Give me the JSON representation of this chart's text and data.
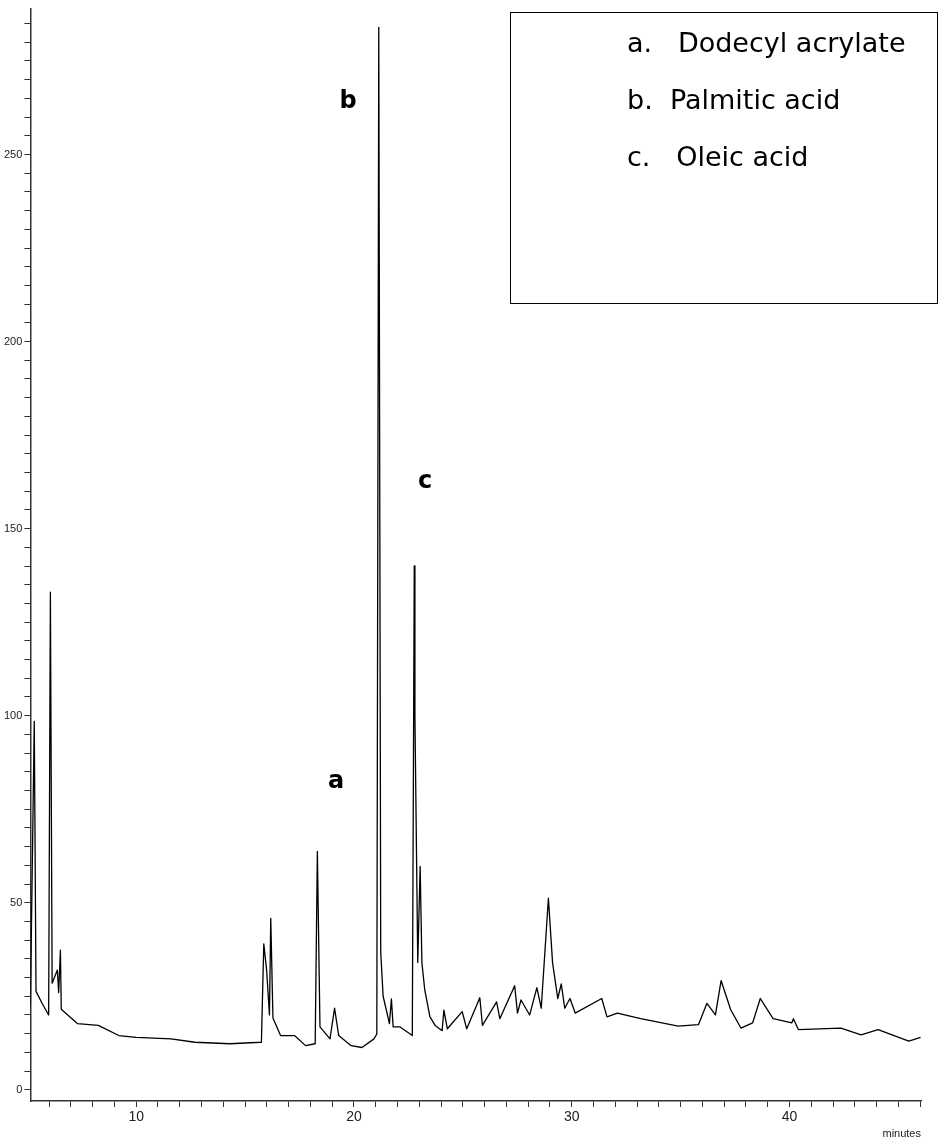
{
  "chart_data": {
    "type": "line",
    "xlabel": "minutes",
    "annotations": [
      "a",
      "b",
      "c",
      "a.   Dodecyl acrylate",
      "b.  Palmitic acid",
      "c.   Oleic acid"
    ],
    "series": [
      {
        "color": "#000000",
        "x": [
          5.14,
          5.32,
          5.4,
          5.69,
          5.98,
          6.06,
          6.14,
          6.38,
          6.44,
          6.52,
          6.56,
          7.3,
          8.26,
          9.2,
          10,
          11.6,
          12.7,
          14.3,
          15.75,
          15.86,
          15.99,
          16.12,
          16.18,
          16.28,
          16.63,
          17.27,
          17.78,
          18.22,
          18.32,
          18.44,
          18.9,
          19.11,
          19.3,
          19.87,
          20.37,
          20.92,
          21.05,
          21.14,
          21.23,
          21.34,
          21.63,
          21.72,
          21.8,
          22.12,
          22.68,
          22.77,
          22.8,
          22.93,
          23.04,
          23.12,
          23.25,
          23.49,
          23.73,
          24.05,
          24.13,
          24.29,
          24.97,
          25.18,
          25.78,
          25.9,
          26.55,
          26.7,
          27.38,
          27.51,
          27.67,
          28.07,
          28.4,
          28.6,
          28.93,
          29.12,
          29.36,
          29.52,
          29.68,
          29.92,
          30.16,
          31.38,
          31.62,
          32.1,
          33.17,
          34.89,
          35.82,
          36.21,
          36.6,
          36.86,
          37.3,
          37.77,
          38.31,
          38.66,
          39.25,
          40.11,
          40.18,
          40.41,
          42.36,
          43.29,
          44.07,
          45.48,
          46.02
        ],
        "values": [
          22.2,
          98.5,
          26.3,
          23,
          20,
          133,
          28.5,
          32,
          26,
          37.3,
          21.5,
          17.7,
          17.2,
          14.5,
          14,
          13.6,
          12.7,
          12.3,
          12.7,
          39,
          32,
          20,
          45.8,
          19.2,
          14.5,
          14.5,
          11.8,
          12.3,
          63.7,
          16.8,
          13.6,
          21.8,
          14.5,
          11.8,
          11.3,
          13.6,
          14.9,
          284,
          36.7,
          25,
          17.7,
          24.3,
          16.8,
          16.8,
          14.5,
          140,
          100,
          34,
          59.7,
          34,
          26.8,
          19.5,
          17.2,
          15.8,
          21.3,
          16.3,
          20.9,
          16.3,
          24.6,
          17.2,
          23.5,
          19,
          27.8,
          20.5,
          24,
          20,
          27.3,
          21.8,
          51.2,
          34,
          24.4,
          28.3,
          21.8,
          24.4,
          20.5,
          24.4,
          19.5,
          20.5,
          19,
          17,
          17.4,
          23.1,
          20,
          29.2,
          21.4,
          16.5,
          17.9,
          24.4,
          19,
          17.9,
          19,
          16.1,
          16.5,
          14.7,
          16.1,
          13,
          14
        ]
      }
    ],
    "xlim": [
      5.14,
      46.04
    ],
    "xticks": [
      {
        "value": 6,
        "label": null
      },
      {
        "value": 7,
        "label": null
      },
      {
        "value": 8,
        "label": null
      },
      {
        "value": 9,
        "label": null
      },
      10,
      {
        "value": 11,
        "label": null
      },
      {
        "value": 12,
        "label": null
      },
      {
        "value": 13,
        "label": null
      },
      {
        "value": 14,
        "label": null
      },
      {
        "value": 15,
        "label": null
      },
      {
        "value": 16,
        "label": null
      },
      {
        "value": 17,
        "label": null
      },
      {
        "value": 18,
        "label": null
      },
      {
        "value": 19,
        "label": null
      },
      20,
      {
        "value": 21,
        "label": null
      },
      {
        "value": 22,
        "label": null
      },
      {
        "value": 23,
        "label": null
      },
      {
        "value": 24,
        "label": null
      },
      {
        "value": 25,
        "label": null
      },
      {
        "value": 26,
        "label": null
      },
      {
        "value": 27,
        "label": null
      },
      {
        "value": 28,
        "label": null
      },
      {
        "value": 29,
        "label": null
      },
      30,
      {
        "value": 31,
        "label": null
      },
      {
        "value": 32,
        "label": null
      },
      {
        "value": 33,
        "label": null
      },
      {
        "value": 34,
        "label": null
      },
      {
        "value": 35,
        "label": null
      },
      {
        "value": 36,
        "label": null
      },
      {
        "value": 37,
        "label": null
      },
      {
        "value": 38,
        "label": null
      },
      {
        "value": 39,
        "label": null
      },
      40,
      {
        "value": 41,
        "label": null
      },
      {
        "value": 42,
        "label": null
      },
      {
        "value": 43,
        "label": null
      },
      {
        "value": 44,
        "label": null
      },
      {
        "value": 45,
        "label": null
      },
      {
        "value": 46,
        "label": null
      }
    ],
    "ylim": [
      -3,
      289
    ],
    "yticks": [
      0,
      {
        "value": 5,
        "label": null
      },
      {
        "value": 10,
        "label": null
      },
      {
        "value": 15,
        "label": null
      },
      {
        "value": 20,
        "label": null
      },
      {
        "value": 25,
        "label": null
      },
      {
        "value": 30,
        "label": null
      },
      {
        "value": 35,
        "label": null
      },
      {
        "value": 40,
        "label": null
      },
      {
        "value": 45,
        "label": null
      },
      50,
      {
        "value": 55,
        "label": null
      },
      {
        "value": 60,
        "label": null
      },
      {
        "value": 65,
        "label": null
      },
      {
        "value": 70,
        "label": null
      },
      {
        "value": 75,
        "label": null
      },
      {
        "value": 80,
        "label": null
      },
      {
        "value": 85,
        "label": null
      },
      {
        "value": 90,
        "label": null
      },
      {
        "value": 95,
        "label": null
      },
      100,
      {
        "value": 105,
        "label": null
      },
      {
        "value": 110,
        "label": null
      },
      {
        "value": 115,
        "label": null
      },
      {
        "value": 120,
        "label": null
      },
      {
        "value": 125,
        "label": null
      },
      {
        "value": 130,
        "label": null
      },
      {
        "value": 135,
        "label": null
      },
      {
        "value": 140,
        "label": null
      },
      {
        "value": 145,
        "label": null
      },
      150,
      {
        "value": 155,
        "label": null
      },
      {
        "value": 160,
        "label": null
      },
      {
        "value": 165,
        "label": null
      },
      {
        "value": 170,
        "label": null
      },
      {
        "value": 175,
        "label": null
      },
      {
        "value": 180,
        "label": null
      },
      {
        "value": 185,
        "label": null
      },
      {
        "value": 190,
        "label": null
      },
      {
        "value": 195,
        "label": null
      },
      200,
      {
        "value": 205,
        "label": null
      },
      {
        "value": 210,
        "label": null
      },
      {
        "value": 215,
        "label": null
      },
      {
        "value": 220,
        "label": null
      },
      {
        "value": 225,
        "label": null
      },
      {
        "value": 230,
        "label": null
      },
      {
        "value": 235,
        "label": null
      },
      {
        "value": 240,
        "label": null
      },
      {
        "value": 245,
        "label": null
      },
      250,
      {
        "value": 255,
        "label": null
      },
      {
        "value": 260,
        "label": null
      },
      {
        "value": 265,
        "label": null
      },
      {
        "value": 270,
        "label": null
      },
      {
        "value": 275,
        "label": null
      },
      {
        "value": 280,
        "label": null
      },
      {
        "value": 285,
        "label": null
      }
    ],
    "grid": false,
    "legend": false,
    "marker": "none",
    "line_style": "solid"
  }
}
